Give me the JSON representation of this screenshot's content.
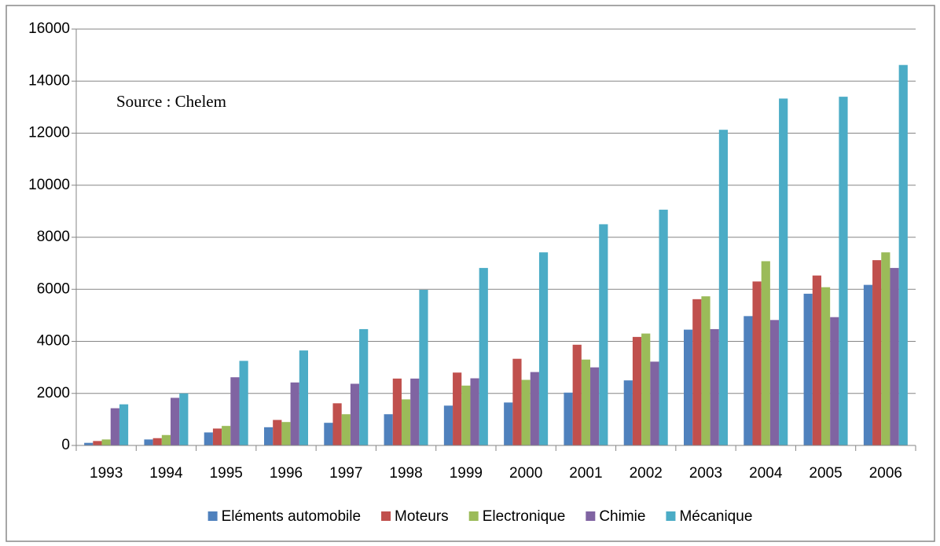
{
  "chart_data": {
    "type": "bar",
    "annotation": "Source : Chelem",
    "categories": [
      "1993",
      "1994",
      "1995",
      "1996",
      "1997",
      "1998",
      "1999",
      "2000",
      "2001",
      "2002",
      "2003",
      "2004",
      "2005",
      "2006"
    ],
    "series": [
      {
        "name": "Eléments automobile",
        "color": "#4f81bd",
        "values": [
          100,
          230,
          500,
          700,
          870,
          1200,
          1530,
          1650,
          2030,
          2500,
          4450,
          4970,
          5830,
          6170
        ]
      },
      {
        "name": "Moteurs",
        "color": "#c0504d",
        "values": [
          170,
          280,
          650,
          980,
          1620,
          2570,
          2800,
          3330,
          3870,
          4170,
          5620,
          6300,
          6530,
          7120
        ]
      },
      {
        "name": "Electronique",
        "color": "#9bbb59",
        "values": [
          230,
          400,
          750,
          900,
          1200,
          1770,
          2300,
          2520,
          3300,
          4300,
          5730,
          7080,
          6080,
          7420
        ]
      },
      {
        "name": "Chimie",
        "color": "#8064a2",
        "values": [
          1430,
          1830,
          2620,
          2420,
          2370,
          2570,
          2580,
          2820,
          3000,
          3220,
          4470,
          4820,
          4930,
          6820
        ]
      },
      {
        "name": "Mécanique",
        "color": "#4bacc6",
        "values": [
          1580,
          2000,
          3250,
          3650,
          4470,
          5980,
          6820,
          7420,
          8500,
          9060,
          12130,
          13330,
          13400,
          14620
        ]
      }
    ],
    "ylim": [
      0,
      16000
    ],
    "yticks": [
      0,
      2000,
      4000,
      6000,
      8000,
      10000,
      12000,
      14000,
      16000
    ],
    "grid": true,
    "legend": "bottom"
  }
}
